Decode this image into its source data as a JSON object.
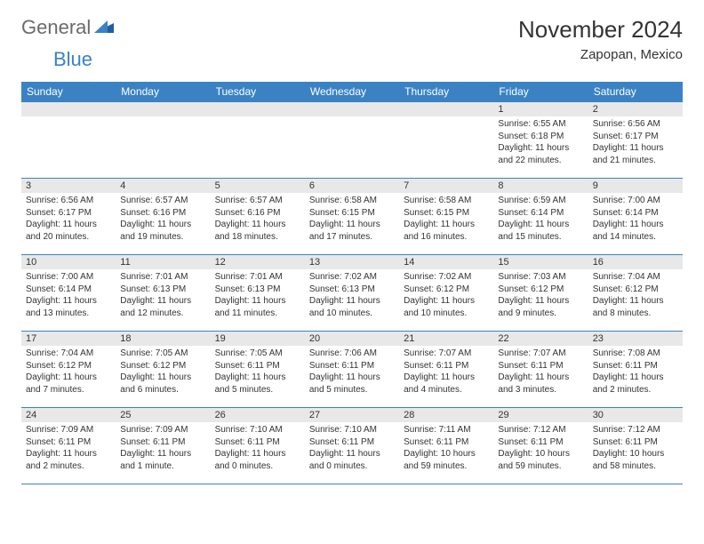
{
  "brand": {
    "part1": "General",
    "part2": "Blue"
  },
  "title": "November 2024",
  "location": "Zapopan, Mexico",
  "weekdays": [
    "Sunday",
    "Monday",
    "Tuesday",
    "Wednesday",
    "Thursday",
    "Friday",
    "Saturday"
  ],
  "colors": {
    "header_bg": "#3b82c4",
    "header_text": "#ffffff",
    "daynum_bg": "#e8e8e8",
    "border": "#3b82c4",
    "logo_gray": "#6b6b6b",
    "logo_blue": "#3b82c4"
  },
  "typography": {
    "title_fontsize": 26,
    "location_fontsize": 15,
    "weekday_fontsize": 12,
    "daynum_fontsize": 11,
    "body_fontsize": 10
  },
  "grid": [
    [
      {
        "n": "",
        "lines": []
      },
      {
        "n": "",
        "lines": []
      },
      {
        "n": "",
        "lines": []
      },
      {
        "n": "",
        "lines": []
      },
      {
        "n": "",
        "lines": []
      },
      {
        "n": "1",
        "lines": [
          "Sunrise: 6:55 AM",
          "Sunset: 6:18 PM",
          "Daylight: 11 hours",
          "and 22 minutes."
        ]
      },
      {
        "n": "2",
        "lines": [
          "Sunrise: 6:56 AM",
          "Sunset: 6:17 PM",
          "Daylight: 11 hours",
          "and 21 minutes."
        ]
      }
    ],
    [
      {
        "n": "3",
        "lines": [
          "Sunrise: 6:56 AM",
          "Sunset: 6:17 PM",
          "Daylight: 11 hours",
          "and 20 minutes."
        ]
      },
      {
        "n": "4",
        "lines": [
          "Sunrise: 6:57 AM",
          "Sunset: 6:16 PM",
          "Daylight: 11 hours",
          "and 19 minutes."
        ]
      },
      {
        "n": "5",
        "lines": [
          "Sunrise: 6:57 AM",
          "Sunset: 6:16 PM",
          "Daylight: 11 hours",
          "and 18 minutes."
        ]
      },
      {
        "n": "6",
        "lines": [
          "Sunrise: 6:58 AM",
          "Sunset: 6:15 PM",
          "Daylight: 11 hours",
          "and 17 minutes."
        ]
      },
      {
        "n": "7",
        "lines": [
          "Sunrise: 6:58 AM",
          "Sunset: 6:15 PM",
          "Daylight: 11 hours",
          "and 16 minutes."
        ]
      },
      {
        "n": "8",
        "lines": [
          "Sunrise: 6:59 AM",
          "Sunset: 6:14 PM",
          "Daylight: 11 hours",
          "and 15 minutes."
        ]
      },
      {
        "n": "9",
        "lines": [
          "Sunrise: 7:00 AM",
          "Sunset: 6:14 PM",
          "Daylight: 11 hours",
          "and 14 minutes."
        ]
      }
    ],
    [
      {
        "n": "10",
        "lines": [
          "Sunrise: 7:00 AM",
          "Sunset: 6:14 PM",
          "Daylight: 11 hours",
          "and 13 minutes."
        ]
      },
      {
        "n": "11",
        "lines": [
          "Sunrise: 7:01 AM",
          "Sunset: 6:13 PM",
          "Daylight: 11 hours",
          "and 12 minutes."
        ]
      },
      {
        "n": "12",
        "lines": [
          "Sunrise: 7:01 AM",
          "Sunset: 6:13 PM",
          "Daylight: 11 hours",
          "and 11 minutes."
        ]
      },
      {
        "n": "13",
        "lines": [
          "Sunrise: 7:02 AM",
          "Sunset: 6:13 PM",
          "Daylight: 11 hours",
          "and 10 minutes."
        ]
      },
      {
        "n": "14",
        "lines": [
          "Sunrise: 7:02 AM",
          "Sunset: 6:12 PM",
          "Daylight: 11 hours",
          "and 10 minutes."
        ]
      },
      {
        "n": "15",
        "lines": [
          "Sunrise: 7:03 AM",
          "Sunset: 6:12 PM",
          "Daylight: 11 hours",
          "and 9 minutes."
        ]
      },
      {
        "n": "16",
        "lines": [
          "Sunrise: 7:04 AM",
          "Sunset: 6:12 PM",
          "Daylight: 11 hours",
          "and 8 minutes."
        ]
      }
    ],
    [
      {
        "n": "17",
        "lines": [
          "Sunrise: 7:04 AM",
          "Sunset: 6:12 PM",
          "Daylight: 11 hours",
          "and 7 minutes."
        ]
      },
      {
        "n": "18",
        "lines": [
          "Sunrise: 7:05 AM",
          "Sunset: 6:12 PM",
          "Daylight: 11 hours",
          "and 6 minutes."
        ]
      },
      {
        "n": "19",
        "lines": [
          "Sunrise: 7:05 AM",
          "Sunset: 6:11 PM",
          "Daylight: 11 hours",
          "and 5 minutes."
        ]
      },
      {
        "n": "20",
        "lines": [
          "Sunrise: 7:06 AM",
          "Sunset: 6:11 PM",
          "Daylight: 11 hours",
          "and 5 minutes."
        ]
      },
      {
        "n": "21",
        "lines": [
          "Sunrise: 7:07 AM",
          "Sunset: 6:11 PM",
          "Daylight: 11 hours",
          "and 4 minutes."
        ]
      },
      {
        "n": "22",
        "lines": [
          "Sunrise: 7:07 AM",
          "Sunset: 6:11 PM",
          "Daylight: 11 hours",
          "and 3 minutes."
        ]
      },
      {
        "n": "23",
        "lines": [
          "Sunrise: 7:08 AM",
          "Sunset: 6:11 PM",
          "Daylight: 11 hours",
          "and 2 minutes."
        ]
      }
    ],
    [
      {
        "n": "24",
        "lines": [
          "Sunrise: 7:09 AM",
          "Sunset: 6:11 PM",
          "Daylight: 11 hours",
          "and 2 minutes."
        ]
      },
      {
        "n": "25",
        "lines": [
          "Sunrise: 7:09 AM",
          "Sunset: 6:11 PM",
          "Daylight: 11 hours",
          "and 1 minute."
        ]
      },
      {
        "n": "26",
        "lines": [
          "Sunrise: 7:10 AM",
          "Sunset: 6:11 PM",
          "Daylight: 11 hours",
          "and 0 minutes."
        ]
      },
      {
        "n": "27",
        "lines": [
          "Sunrise: 7:10 AM",
          "Sunset: 6:11 PM",
          "Daylight: 11 hours",
          "and 0 minutes."
        ]
      },
      {
        "n": "28",
        "lines": [
          "Sunrise: 7:11 AM",
          "Sunset: 6:11 PM",
          "Daylight: 10 hours",
          "and 59 minutes."
        ]
      },
      {
        "n": "29",
        "lines": [
          "Sunrise: 7:12 AM",
          "Sunset: 6:11 PM",
          "Daylight: 10 hours",
          "and 59 minutes."
        ]
      },
      {
        "n": "30",
        "lines": [
          "Sunrise: 7:12 AM",
          "Sunset: 6:11 PM",
          "Daylight: 10 hours",
          "and 58 minutes."
        ]
      }
    ]
  ]
}
